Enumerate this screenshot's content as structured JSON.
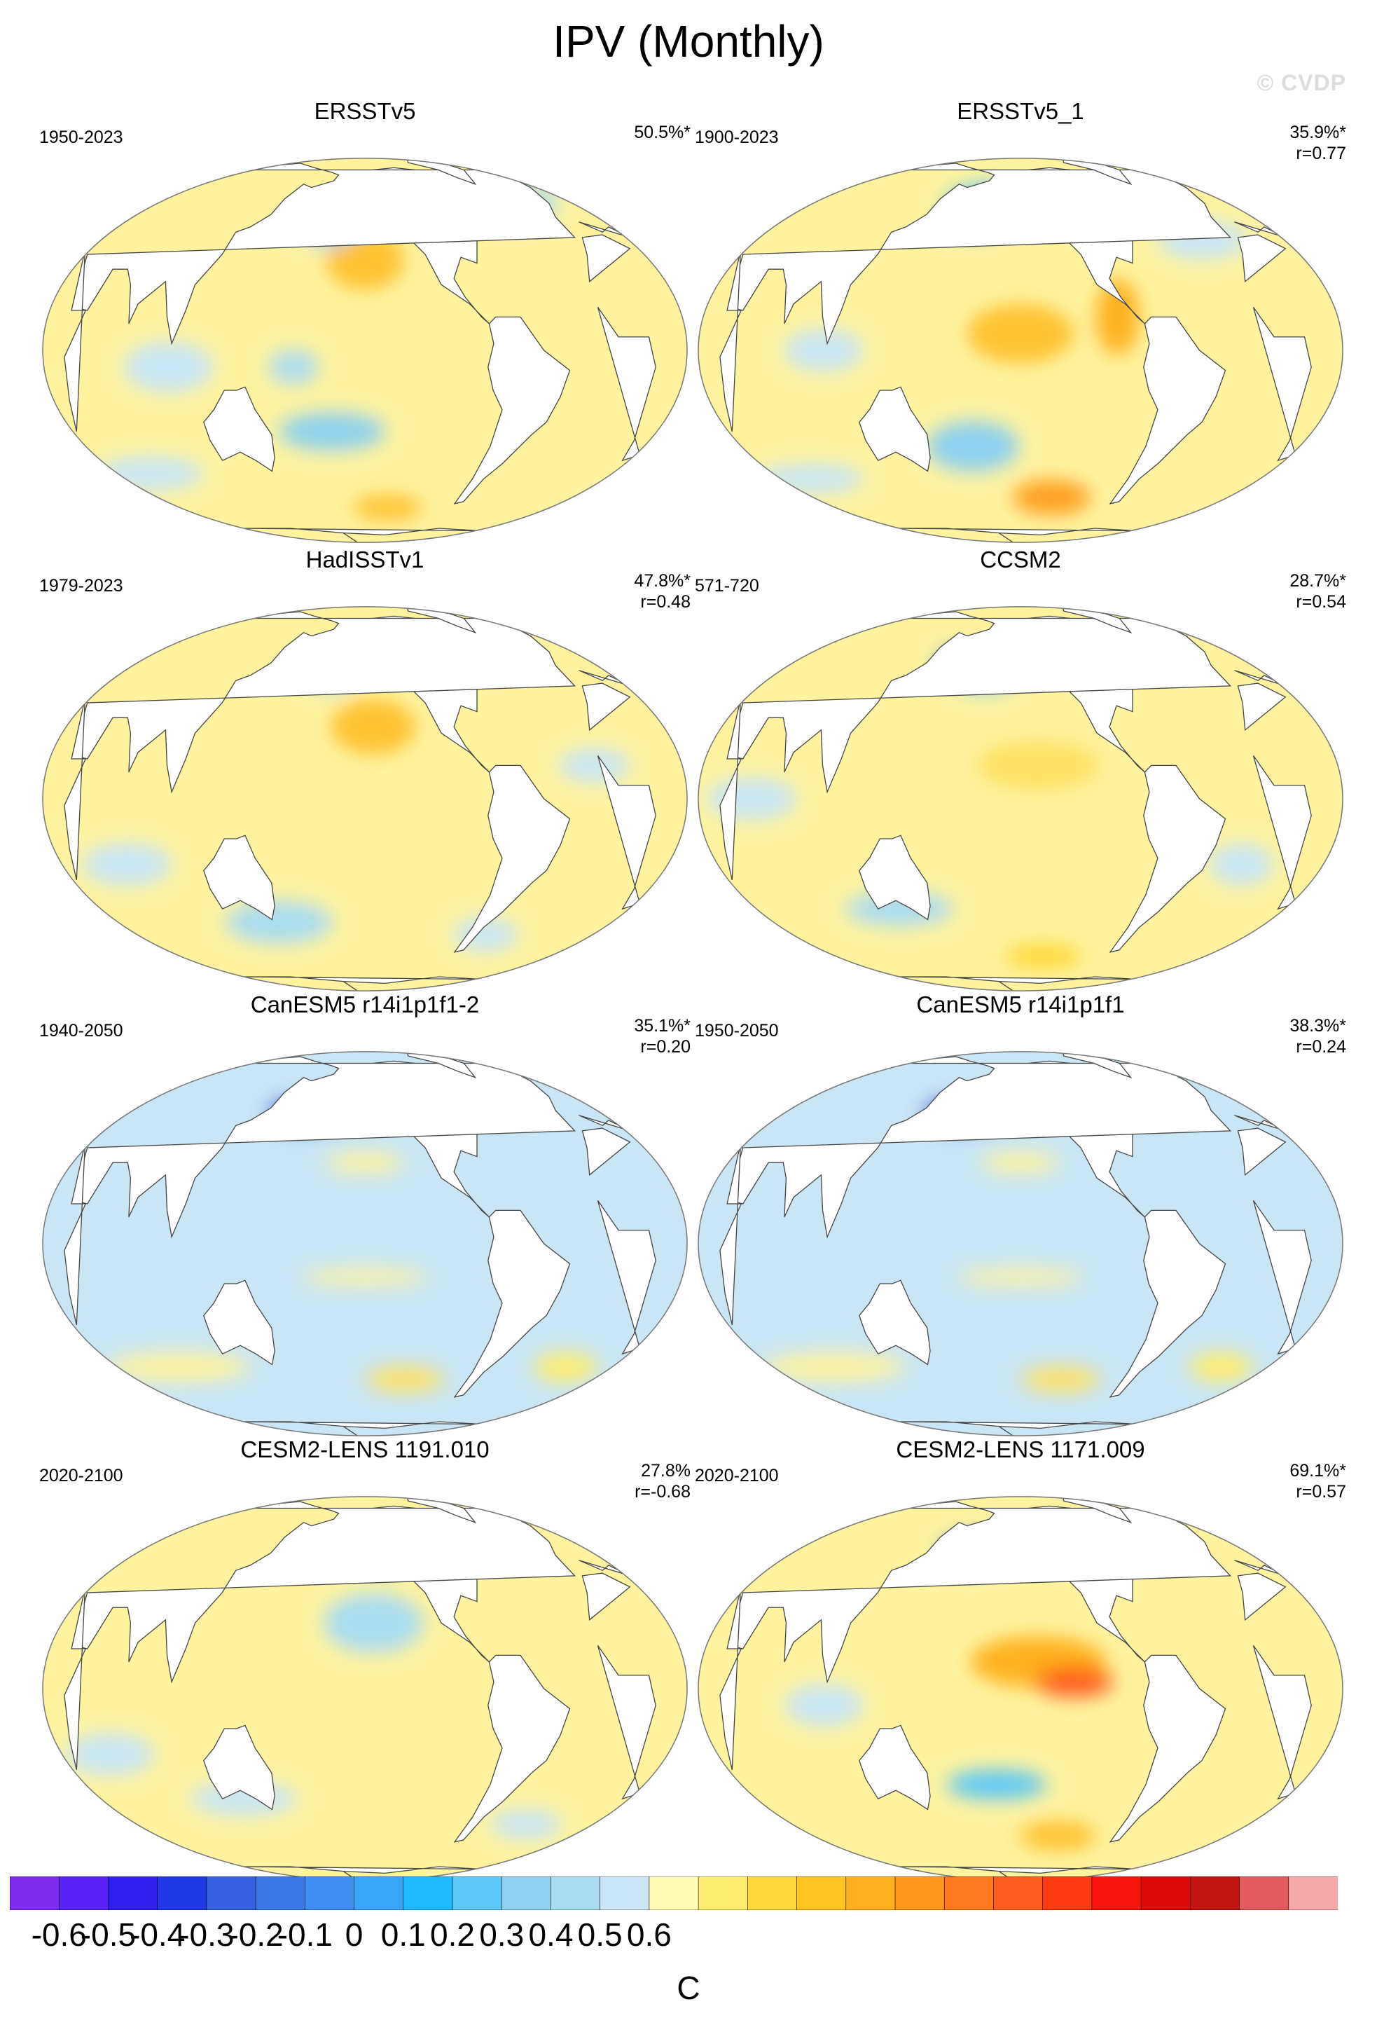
{
  "title": "IPV (Monthly)",
  "watermark": "© CVDP",
  "unit": "C",
  "colors": {
    "land": "#ffffff",
    "ocean_base": "#fff7b3",
    "outline": "#777777",
    "coast": "#444444"
  },
  "colorbar": {
    "colors": [
      "#7e2bf0",
      "#5a22f5",
      "#2d1ff0",
      "#2038e8",
      "#3560e0",
      "#3a7ae8",
      "#3f8ff2",
      "#3aa5f7",
      "#1ebcff",
      "#5cc8f7",
      "#8ed1f0",
      "#a9dcf2",
      "#c8e6f5",
      "#fffbb3",
      "#ffed70",
      "#ffd83a",
      "#ffc41f",
      "#ffb01e",
      "#ff961e",
      "#ff7a1f",
      "#ff5d1e",
      "#ff3b12",
      "#f7140b",
      "#dd0a0a",
      "#c21410",
      "#e35c5c",
      "#f7a8a8"
    ],
    "ticks": [
      "-0.6",
      "-0.5",
      "-0.4",
      "-0.3",
      "-0.2",
      "-0.1",
      "0",
      "0.1",
      "0.2",
      "0.3",
      "0.4",
      "0.5",
      "0.6"
    ]
  },
  "panels": [
    {
      "title": "ERSSTv5",
      "years": "1950-2023",
      "pct": "50.5%*",
      "r": "",
      "ocean": "#fff3a0",
      "patches": [
        {
          "lon": -150,
          "lat": 28,
          "rl": 22,
          "rt": 14,
          "c": "#ffc233"
        },
        {
          "lon": -135,
          "lat": 48,
          "rl": 14,
          "rt": 9,
          "c": "#ff9c1e"
        },
        {
          "lon": -175,
          "lat": 38,
          "rl": 14,
          "rt": 7,
          "c": "#a9dcf2"
        },
        {
          "lon": 170,
          "lat": -5,
          "rl": 14,
          "rt": 8,
          "c": "#a9dcf2"
        },
        {
          "lon": -170,
          "lat": -25,
          "rl": 30,
          "rt": 9,
          "c": "#8ed1f0"
        },
        {
          "lon": -130,
          "lat": -55,
          "rl": 20,
          "rt": 6,
          "c": "#ffc233"
        },
        {
          "lon": 100,
          "lat": -5,
          "rl": 25,
          "rt": 12,
          "c": "#c8e6f5"
        },
        {
          "lon": -30,
          "lat": 50,
          "rl": 25,
          "rt": 8,
          "c": "#a9dcf2"
        },
        {
          "lon": 60,
          "lat": -40,
          "rl": 30,
          "rt": 8,
          "c": "#c8e6f5"
        }
      ]
    },
    {
      "title": "ERSSTv5_1",
      "years": "1900-2023",
      "pct": "35.9%*",
      "r": "r=0.77",
      "ocean": "#fff3a0",
      "patches": [
        {
          "lon": -150,
          "lat": 5,
          "rl": 30,
          "rt": 14,
          "c": "#ffc233"
        },
        {
          "lon": -170,
          "lat": 50,
          "rl": 28,
          "rt": 9,
          "c": "#5cc8f7"
        },
        {
          "lon": 175,
          "lat": 43,
          "rl": 16,
          "rt": 7,
          "c": "#3f8ff2"
        },
        {
          "lon": -180,
          "lat": -30,
          "rl": 26,
          "rt": 12,
          "c": "#8ed1f0"
        },
        {
          "lon": -125,
          "lat": -50,
          "rl": 22,
          "rt": 8,
          "c": "#ff9c1e"
        },
        {
          "lon": -95,
          "lat": 10,
          "rl": 12,
          "rt": 18,
          "c": "#ffb01e"
        },
        {
          "lon": 100,
          "lat": 0,
          "rl": 22,
          "rt": 10,
          "c": "#c8e6f5"
        },
        {
          "lon": -30,
          "lat": 35,
          "rl": 25,
          "rt": 9,
          "c": "#c8e6f5"
        },
        {
          "lon": 60,
          "lat": -42,
          "rl": 30,
          "rt": 7,
          "c": "#c8e6f5"
        }
      ]
    },
    {
      "title": "HadISSTv1",
      "years": "1979-2023",
      "pct": "47.8%*",
      "r": "r=0.48",
      "ocean": "#fff3a0",
      "patches": [
        {
          "lon": -145,
          "lat": 22,
          "rl": 24,
          "rt": 13,
          "c": "#ffc233"
        },
        {
          "lon": -135,
          "lat": 48,
          "rl": 10,
          "rt": 8,
          "c": "#ffb01e"
        },
        {
          "lon": -175,
          "lat": 40,
          "rl": 14,
          "rt": 7,
          "c": "#a9dcf2"
        },
        {
          "lon": 150,
          "lat": -40,
          "rl": 30,
          "rt": 10,
          "c": "#a9dcf2"
        },
        {
          "lon": -60,
          "lat": -45,
          "rl": 18,
          "rt": 8,
          "c": "#c8e6f5"
        },
        {
          "lon": -50,
          "lat": 50,
          "rl": 12,
          "rt": 8,
          "c": "#8ed1f0"
        },
        {
          "lon": 70,
          "lat": -20,
          "rl": 25,
          "rt": 10,
          "c": "#c8e6f5"
        },
        {
          "lon": -20,
          "lat": 10,
          "rl": 20,
          "rt": 8,
          "c": "#c8e6f5"
        }
      ]
    },
    {
      "title": "CCSM2",
      "years": "571-720",
      "pct": "28.7%*",
      "r": "r=0.54",
      "ocean": "#fff3a0",
      "patches": [
        {
          "lon": -140,
          "lat": 10,
          "rl": 35,
          "rt": 12,
          "c": "#ffe066"
        },
        {
          "lon": 165,
          "lat": 45,
          "rl": 12,
          "rt": 6,
          "c": "#3a7ae8"
        },
        {
          "lon": -175,
          "lat": 40,
          "rl": 18,
          "rt": 8,
          "c": "#8ed1f0"
        },
        {
          "lon": 130,
          "lat": -35,
          "rl": 30,
          "rt": 8,
          "c": "#a9dcf2"
        },
        {
          "lon": -130,
          "lat": -55,
          "rl": 22,
          "rt": 6,
          "c": "#ffd83a"
        },
        {
          "lon": -40,
          "lat": 55,
          "rl": 14,
          "rt": 6,
          "c": "#8ed1f0"
        },
        {
          "lon": 60,
          "lat": 0,
          "rl": 25,
          "rt": 10,
          "c": "#c8e6f5"
        },
        {
          "lon": -20,
          "lat": -20,
          "rl": 18,
          "rt": 10,
          "c": "#c8e6f5"
        }
      ]
    },
    {
      "title": "CanESM5 r14i1p1f1-2",
      "years": "1940-2050",
      "pct": "35.1%*",
      "r": "r=0.20",
      "ocean": "#c8e6f5",
      "patches": [
        {
          "lon": 170,
          "lat": 42,
          "rl": 22,
          "rt": 7,
          "c": "#3f8ff2"
        },
        {
          "lon": 155,
          "lat": 43,
          "rl": 10,
          "rt": 5,
          "c": "#3030e0"
        },
        {
          "lon": -150,
          "lat": 25,
          "rl": 22,
          "rt": 5,
          "c": "#fff3a0"
        },
        {
          "lon": -150,
          "lat": -10,
          "rl": 35,
          "rt": 4,
          "c": "#fff3a0"
        },
        {
          "lon": 80,
          "lat": -40,
          "rl": 40,
          "rt": 7,
          "c": "#fff3a0"
        },
        {
          "lon": -120,
          "lat": -45,
          "rl": 22,
          "rt": 6,
          "c": "#ffe066"
        },
        {
          "lon": -45,
          "lat": 55,
          "rl": 10,
          "rt": 6,
          "c": "#3a7ae8"
        },
        {
          "lon": -40,
          "lat": 45,
          "rl": 6,
          "rt": 3,
          "c": "#ffc233"
        },
        {
          "lon": -10,
          "lat": -40,
          "rl": 18,
          "rt": 7,
          "c": "#ffed70"
        }
      ]
    },
    {
      "title": "CanESM5 r14i1p1f1",
      "years": "1950-2050",
      "pct": "38.3%*",
      "r": "r=0.24",
      "ocean": "#c8e6f5",
      "patches": [
        {
          "lon": 170,
          "lat": 42,
          "rl": 22,
          "rt": 7,
          "c": "#3f8ff2"
        },
        {
          "lon": 155,
          "lat": 43,
          "rl": 10,
          "rt": 5,
          "c": "#3030e0"
        },
        {
          "lon": -150,
          "lat": 25,
          "rl": 22,
          "rt": 5,
          "c": "#fff3a0"
        },
        {
          "lon": -150,
          "lat": -10,
          "rl": 35,
          "rt": 4,
          "c": "#fff3a0"
        },
        {
          "lon": 80,
          "lat": -40,
          "rl": 40,
          "rt": 7,
          "c": "#fff3a0"
        },
        {
          "lon": -120,
          "lat": -45,
          "rl": 22,
          "rt": 6,
          "c": "#ffe066"
        },
        {
          "lon": -45,
          "lat": 55,
          "rl": 10,
          "rt": 6,
          "c": "#3a7ae8"
        },
        {
          "lon": -40,
          "lat": 45,
          "rl": 6,
          "rt": 3,
          "c": "#ffc233"
        },
        {
          "lon": -10,
          "lat": -40,
          "rl": 18,
          "rt": 7,
          "c": "#ffed70"
        }
      ]
    },
    {
      "title": "CESM2-LENS 1191.010",
      "years": "2020-2100",
      "pct": "27.8%",
      "r": "r=-0.68",
      "ocean": "#fff3a0",
      "patches": [
        {
          "lon": -145,
          "lat": 20,
          "rl": 28,
          "rt": 14,
          "c": "#a9dcf2"
        },
        {
          "lon": -135,
          "lat": 45,
          "rl": 12,
          "rt": 8,
          "c": "#8ed1f0"
        },
        {
          "lon": 130,
          "lat": -35,
          "rl": 30,
          "rt": 8,
          "c": "#c8e6f5"
        },
        {
          "lon": -60,
          "lat": 52,
          "rl": 10,
          "rt": 6,
          "c": "#ffc233"
        },
        {
          "lon": -30,
          "lat": -45,
          "rl": 20,
          "rt": 7,
          "c": "#c8e6f5"
        },
        {
          "lon": 60,
          "lat": -20,
          "rl": 25,
          "rt": 10,
          "c": "#c8e6f5"
        }
      ]
    },
    {
      "title": "CESM2-LENS 1171.009",
      "years": "2020-2100",
      "pct": "69.1%*",
      "r": "r=0.57",
      "ocean": "#fff3a0",
      "patches": [
        {
          "lon": -140,
          "lat": 8,
          "rl": 38,
          "rt": 12,
          "c": "#ffb01e"
        },
        {
          "lon": -120,
          "lat": 2,
          "rl": 22,
          "rt": 7,
          "c": "#ff5d1e"
        },
        {
          "lon": 175,
          "lat": 45,
          "rl": 18,
          "rt": 8,
          "c": "#3f8ff2"
        },
        {
          "lon": 170,
          "lat": 46,
          "rl": 9,
          "rt": 5,
          "c": "#2038e8"
        },
        {
          "lon": -165,
          "lat": -30,
          "rl": 28,
          "rt": 7,
          "c": "#5cc8f7"
        },
        {
          "lon": -120,
          "lat": -50,
          "rl": 22,
          "rt": 7,
          "c": "#ffc233"
        },
        {
          "lon": -40,
          "lat": 55,
          "rl": 10,
          "rt": 6,
          "c": "#8ed1f0"
        },
        {
          "lon": 100,
          "lat": -5,
          "rl": 22,
          "rt": 10,
          "c": "#c8e6f5"
        }
      ]
    }
  ]
}
